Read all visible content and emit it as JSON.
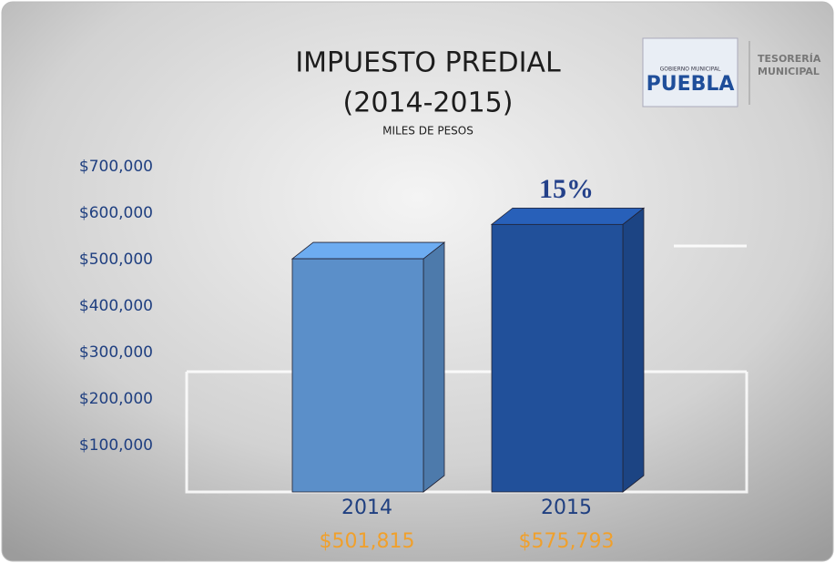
{
  "chart_data": {
    "type": "bar3d",
    "title": "IMPUESTO PREDIAL",
    "subtitle": "(2014-2015)",
    "unit_label": "MILES DE PESOS",
    "categories": [
      "2014",
      "2015"
    ],
    "values": [
      501815,
      575793
    ],
    "value_labels": [
      "$501,815",
      "$575,793"
    ],
    "colors": [
      "#5b8fc9",
      "#21509a"
    ],
    "annotation": "15%",
    "ylim": [
      0,
      700000
    ],
    "yticks": [
      {
        "value": 100000,
        "label": "$100,000"
      },
      {
        "value": 200000,
        "label": "$200,000"
      },
      {
        "value": 300000,
        "label": "$300,000"
      },
      {
        "value": 400000,
        "label": "$400,000"
      },
      {
        "value": 500000,
        "label": "$500,000"
      },
      {
        "value": 600000,
        "label": "$600,000"
      },
      {
        "value": 700000,
        "label": "$700,000"
      }
    ],
    "logo": {
      "top": "GOBIERNO MUNICIPAL",
      "name": "PUEBLA",
      "office": [
        "TESORERÍA",
        "MUNICIPAL"
      ]
    }
  }
}
